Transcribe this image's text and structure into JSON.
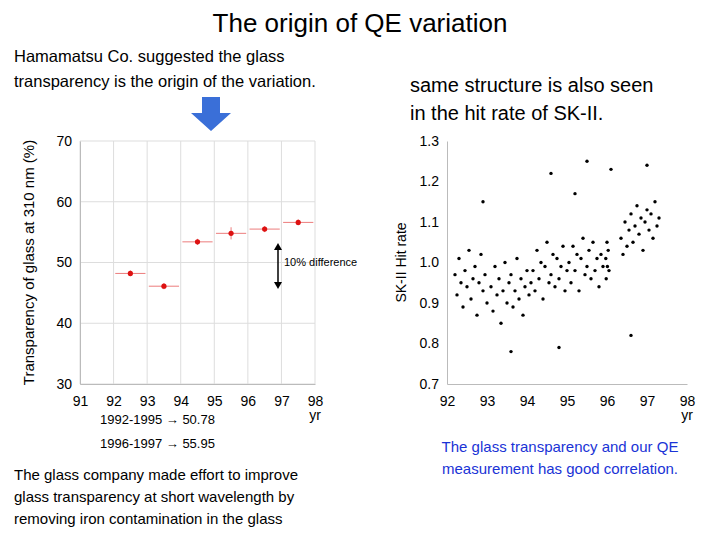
{
  "slide": {
    "title": "The origin of QE variation",
    "texts": [
      "Hamamatsu Co. suggested the glass\ntransparency is the origin of the variation.",
      "same structure is also seen\nin the hit rate of SK-II.",
      "The glass company made effort to improve\nglass transparency at short wavelength by\nremoving iron contamination in the glass",
      "The glass transparency and our QE\nmeasurement has good correlation."
    ]
  },
  "chart_data": [
    {
      "type": "scatter",
      "y_label": "Transparency of glass at 310 nm (%)",
      "x_label": "yr",
      "xlim": [
        91,
        98
      ],
      "xticks": [
        91,
        92,
        93,
        94,
        95,
        96,
        97,
        98
      ],
      "ylim": [
        30,
        70
      ],
      "yticks": [
        30,
        40,
        50,
        60,
        70
      ],
      "grid": true,
      "series": [
        {
          "color": "#dd1111",
          "marker": "circle",
          "x": [
            92.5,
            93.5,
            94.5,
            95.5,
            96.5,
            97.5
          ],
          "values": [
            48.2,
            46.1,
            53.4,
            54.8,
            55.5,
            56.6
          ],
          "x_error": [
            0.45,
            0.45,
            0.45,
            0.45,
            0.45,
            0.45
          ],
          "y_error": [
            0.5,
            0.5,
            0.5,
            1.0,
            0.5,
            0.5
          ]
        }
      ],
      "annotations": [
        "10% difference",
        "1992-1995 → 50.78",
        "1996-1997 → 55.95"
      ]
    },
    {
      "type": "scatter",
      "y_label": "SK-II Hit rate",
      "x_label": "yr",
      "xlim": [
        92,
        98
      ],
      "xticks": [
        92,
        93,
        94,
        95,
        96,
        97,
        98
      ],
      "ylim": [
        0.7,
        1.3
      ],
      "yticks": [
        0.7,
        0.8,
        0.9,
        {
          "value": 1,
          "label": "1.0"
        },
        1.1,
        1.2,
        1.3
      ],
      "grid": false,
      "series": [
        {
          "color": "#000000",
          "marker": "circle",
          "x": [
            92.2,
            92.25,
            92.3,
            92.35,
            92.4,
            92.45,
            92.5,
            92.55,
            92.6,
            92.65,
            92.7,
            92.75,
            92.8,
            92.85,
            92.9,
            92.95,
            93.0,
            93.1,
            93.15,
            93.2,
            93.25,
            93.3,
            93.35,
            93.4,
            93.45,
            93.5,
            93.55,
            93.6,
            93.65,
            93.7,
            93.75,
            93.8,
            93.85,
            93.9,
            93.95,
            94.0,
            94.05,
            94.1,
            94.15,
            94.2,
            94.25,
            94.3,
            94.35,
            94.4,
            94.45,
            94.5,
            94.55,
            94.6,
            94.65,
            94.7,
            94.75,
            94.8,
            94.85,
            94.9,
            94.95,
            95.0,
            95.05,
            95.1,
            95.15,
            95.2,
            95.25,
            95.3,
            95.35,
            95.4,
            95.45,
            95.5,
            95.55,
            95.6,
            95.65,
            95.7,
            95.75,
            95.8,
            95.85,
            95.9,
            95.97,
            95.98,
            96.0,
            96.01,
            96.03,
            96.05,
            96.35,
            96.4,
            96.45,
            96.5,
            96.55,
            96.6,
            96.65,
            96.7,
            96.75,
            96.8,
            96.85,
            96.9,
            96.95,
            97.0,
            97.05,
            97.1,
            97.15,
            97.2,
            97.25,
            97.3,
            92.9,
            93.6,
            94.6,
            95.5,
            96.1,
            97.0,
            94.8,
            95.2,
            96.6
          ],
          "values": [
            0.97,
            0.92,
            1.01,
            0.95,
            0.89,
            0.98,
            0.94,
            1.03,
            0.91,
            0.96,
            0.99,
            0.87,
            0.95,
            1.02,
            0.93,
            0.97,
            0.9,
            0.94,
            0.88,
            0.99,
            0.92,
            0.96,
            0.85,
            0.93,
            1.0,
            0.9,
            0.95,
            0.97,
            0.89,
            0.93,
            1.01,
            0.91,
            0.96,
            0.87,
            0.94,
            0.98,
            0.92,
            0.95,
            0.98,
            0.93,
            1.03,
            0.96,
            1.0,
            0.91,
            0.99,
            1.05,
            0.95,
            0.97,
            1.02,
            0.94,
            1.01,
            0.96,
            0.99,
            1.04,
            0.93,
            0.98,
            1.0,
            0.95,
            1.04,
            0.98,
            1.02,
            0.93,
            1.01,
            1.06,
            0.97,
            0.99,
            1.03,
            0.96,
            1.05,
            0.98,
            1.01,
            0.94,
            1.02,
            0.99,
            1.01,
            0.96,
            1.05,
            0.99,
            1.03,
            0.98,
            1.06,
            1.02,
            1.1,
            1.04,
            1.08,
            1.12,
            1.05,
            1.09,
            1.14,
            1.07,
            1.11,
            1.03,
            1.1,
            1.13,
            1.08,
            1.12,
            1.06,
            1.15,
            1.09,
            1.11,
            1.15,
            0.78,
            1.22,
            1.25,
            1.23,
            1.24,
            0.79,
            1.17,
            0.82
          ]
        }
      ]
    }
  ]
}
